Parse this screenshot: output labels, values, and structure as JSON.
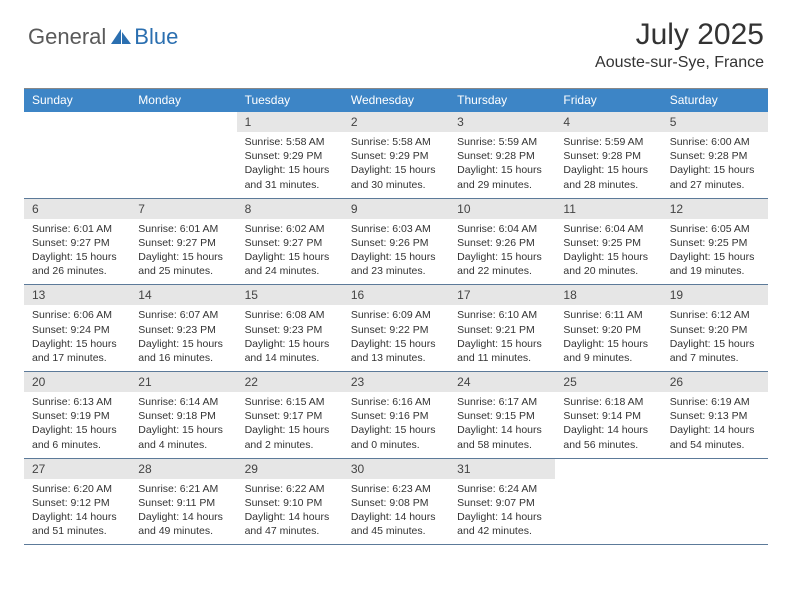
{
  "logo": {
    "text1": "General",
    "text2": "Blue"
  },
  "title": "July 2025",
  "location": "Aouste-sur-Sye, France",
  "colors": {
    "header_bg": "#3d85c6",
    "header_text": "#ffffff",
    "daynum_bg": "#e6e6e6",
    "week_border": "#5c7a99",
    "logo_gray": "#5a5a5a",
    "logo_blue": "#2b6fb0"
  },
  "day_names": [
    "Sunday",
    "Monday",
    "Tuesday",
    "Wednesday",
    "Thursday",
    "Friday",
    "Saturday"
  ],
  "weeks": [
    [
      null,
      null,
      {
        "n": "1",
        "sr": "5:58 AM",
        "ss": "9:29 PM",
        "dl": "15 hours and 31 minutes."
      },
      {
        "n": "2",
        "sr": "5:58 AM",
        "ss": "9:29 PM",
        "dl": "15 hours and 30 minutes."
      },
      {
        "n": "3",
        "sr": "5:59 AM",
        "ss": "9:28 PM",
        "dl": "15 hours and 29 minutes."
      },
      {
        "n": "4",
        "sr": "5:59 AM",
        "ss": "9:28 PM",
        "dl": "15 hours and 28 minutes."
      },
      {
        "n": "5",
        "sr": "6:00 AM",
        "ss": "9:28 PM",
        "dl": "15 hours and 27 minutes."
      }
    ],
    [
      {
        "n": "6",
        "sr": "6:01 AM",
        "ss": "9:27 PM",
        "dl": "15 hours and 26 minutes."
      },
      {
        "n": "7",
        "sr": "6:01 AM",
        "ss": "9:27 PM",
        "dl": "15 hours and 25 minutes."
      },
      {
        "n": "8",
        "sr": "6:02 AM",
        "ss": "9:27 PM",
        "dl": "15 hours and 24 minutes."
      },
      {
        "n": "9",
        "sr": "6:03 AM",
        "ss": "9:26 PM",
        "dl": "15 hours and 23 minutes."
      },
      {
        "n": "10",
        "sr": "6:04 AM",
        "ss": "9:26 PM",
        "dl": "15 hours and 22 minutes."
      },
      {
        "n": "11",
        "sr": "6:04 AM",
        "ss": "9:25 PM",
        "dl": "15 hours and 20 minutes."
      },
      {
        "n": "12",
        "sr": "6:05 AM",
        "ss": "9:25 PM",
        "dl": "15 hours and 19 minutes."
      }
    ],
    [
      {
        "n": "13",
        "sr": "6:06 AM",
        "ss": "9:24 PM",
        "dl": "15 hours and 17 minutes."
      },
      {
        "n": "14",
        "sr": "6:07 AM",
        "ss": "9:23 PM",
        "dl": "15 hours and 16 minutes."
      },
      {
        "n": "15",
        "sr": "6:08 AM",
        "ss": "9:23 PM",
        "dl": "15 hours and 14 minutes."
      },
      {
        "n": "16",
        "sr": "6:09 AM",
        "ss": "9:22 PM",
        "dl": "15 hours and 13 minutes."
      },
      {
        "n": "17",
        "sr": "6:10 AM",
        "ss": "9:21 PM",
        "dl": "15 hours and 11 minutes."
      },
      {
        "n": "18",
        "sr": "6:11 AM",
        "ss": "9:20 PM",
        "dl": "15 hours and 9 minutes."
      },
      {
        "n": "19",
        "sr": "6:12 AM",
        "ss": "9:20 PM",
        "dl": "15 hours and 7 minutes."
      }
    ],
    [
      {
        "n": "20",
        "sr": "6:13 AM",
        "ss": "9:19 PM",
        "dl": "15 hours and 6 minutes."
      },
      {
        "n": "21",
        "sr": "6:14 AM",
        "ss": "9:18 PM",
        "dl": "15 hours and 4 minutes."
      },
      {
        "n": "22",
        "sr": "6:15 AM",
        "ss": "9:17 PM",
        "dl": "15 hours and 2 minutes."
      },
      {
        "n": "23",
        "sr": "6:16 AM",
        "ss": "9:16 PM",
        "dl": "15 hours and 0 minutes."
      },
      {
        "n": "24",
        "sr": "6:17 AM",
        "ss": "9:15 PM",
        "dl": "14 hours and 58 minutes."
      },
      {
        "n": "25",
        "sr": "6:18 AM",
        "ss": "9:14 PM",
        "dl": "14 hours and 56 minutes."
      },
      {
        "n": "26",
        "sr": "6:19 AM",
        "ss": "9:13 PM",
        "dl": "14 hours and 54 minutes."
      }
    ],
    [
      {
        "n": "27",
        "sr": "6:20 AM",
        "ss": "9:12 PM",
        "dl": "14 hours and 51 minutes."
      },
      {
        "n": "28",
        "sr": "6:21 AM",
        "ss": "9:11 PM",
        "dl": "14 hours and 49 minutes."
      },
      {
        "n": "29",
        "sr": "6:22 AM",
        "ss": "9:10 PM",
        "dl": "14 hours and 47 minutes."
      },
      {
        "n": "30",
        "sr": "6:23 AM",
        "ss": "9:08 PM",
        "dl": "14 hours and 45 minutes."
      },
      {
        "n": "31",
        "sr": "6:24 AM",
        "ss": "9:07 PM",
        "dl": "14 hours and 42 minutes."
      },
      null,
      null
    ]
  ],
  "labels": {
    "sunrise": "Sunrise:",
    "sunset": "Sunset:",
    "daylight": "Daylight:"
  }
}
